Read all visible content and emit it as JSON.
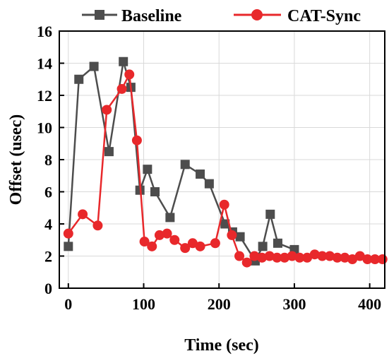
{
  "chart_data": {
    "type": "line",
    "title": "",
    "xlabel": "Time (sec)",
    "ylabel": "Offset (usec)",
    "xlim": [
      -12,
      420
    ],
    "ylim": [
      0,
      16
    ],
    "xticks": [
      0,
      100,
      200,
      300,
      400
    ],
    "yticks": [
      0,
      2,
      4,
      6,
      8,
      10,
      12,
      14,
      16
    ],
    "grid": true,
    "legend_position": "top",
    "series": [
      {
        "name": "Baseline",
        "color": "#4d4d4d",
        "marker": "square",
        "x": [
          0,
          14,
          34,
          54,
          73,
          83,
          95,
          105,
          115,
          135,
          155,
          175,
          187,
          208,
          218,
          228,
          248,
          258,
          268,
          278,
          300
        ],
        "y": [
          2.6,
          13.0,
          13.8,
          8.5,
          14.1,
          12.5,
          6.1,
          7.4,
          6.0,
          4.4,
          7.7,
          7.1,
          6.5,
          4.0,
          3.5,
          3.2,
          1.7,
          2.6,
          4.6,
          2.8,
          2.4
        ]
      },
      {
        "name": "CAT-Sync",
        "color": "#e8282b",
        "marker": "circle",
        "x": [
          0,
          19,
          39,
          51,
          71,
          81,
          91,
          101,
          111,
          121,
          131,
          141,
          155,
          165,
          175,
          195,
          207,
          217,
          227,
          237,
          247,
          257,
          267,
          277,
          287,
          297,
          307,
          317,
          327,
          337,
          347,
          357,
          367,
          377,
          387,
          397,
          407,
          417
        ],
        "y": [
          3.4,
          4.6,
          3.9,
          11.1,
          12.4,
          13.3,
          9.2,
          2.9,
          2.6,
          3.3,
          3.4,
          3.0,
          2.5,
          2.8,
          2.6,
          2.8,
          5.2,
          3.3,
          2.0,
          1.6,
          2.0,
          1.9,
          2.0,
          1.9,
          1.9,
          2.0,
          1.9,
          1.9,
          2.1,
          2.0,
          2.0,
          1.9,
          1.9,
          1.8,
          2.0,
          1.8,
          1.8,
          1.8
        ]
      }
    ]
  }
}
